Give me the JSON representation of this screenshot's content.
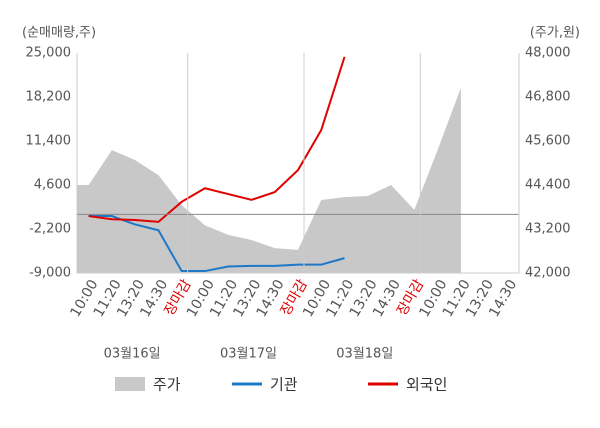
{
  "chart_data": {
    "type": "line",
    "y_axis_label": "(순매매량,주)",
    "y2_axis_label": "(주가,원)",
    "categories": [
      "10:00",
      "11:20",
      "13:20",
      "14:30",
      "장마감",
      "10:00",
      "11:20",
      "13:20",
      "14:30",
      "장마감",
      "10:00",
      "11:20",
      "13:20",
      "14:30",
      "장마감",
      "10:00",
      "11:20",
      "13:20",
      "14:30"
    ],
    "date_labels": [
      "03월16일",
      "03월17일",
      "03월18일"
    ],
    "x_label_highlight": {
      "indices": [
        4,
        9,
        14
      ],
      "color": "#e00000"
    },
    "ylim": [
      -9000,
      25000
    ],
    "yticks": [
      {
        "value": 25000,
        "label": "25,000"
      },
      {
        "value": 18200,
        "label": "18,200"
      },
      {
        "value": 11400,
        "label": "11,400"
      },
      {
        "value": 4600,
        "label": "4,600"
      },
      {
        "value": -2200,
        "label": "-2,200"
      },
      {
        "value": -9000,
        "label": "-9,000"
      }
    ],
    "y2lim": [
      42000,
      48000
    ],
    "y2ticks": [
      {
        "value": 48000,
        "label": "48,000"
      },
      {
        "value": 46800,
        "label": "46,800"
      },
      {
        "value": 45600,
        "label": "45,600"
      },
      {
        "value": 44400,
        "label": "44,400"
      },
      {
        "value": 43200,
        "label": "43,200"
      },
      {
        "value": 42000,
        "label": "42,000"
      }
    ],
    "reference_line": {
      "axis": "y2",
      "value": 43600
    },
    "series": [
      {
        "name": "주가",
        "kind": "area",
        "axis": "y2",
        "color": "#c8c8c8",
        "values": [
          44400,
          45350,
          45080,
          44670,
          43850,
          43300,
          43040,
          42900,
          42680,
          42630,
          43990,
          44070,
          44100,
          44400,
          43720,
          45350,
          47050,
          null,
          null
        ]
      },
      {
        "name": "기관",
        "kind": "line",
        "color": "#1e78c8",
        "values": [
          -200,
          -200,
          -1500,
          -2400,
          -8700,
          -8700,
          -8000,
          -7900,
          -7900,
          -7700,
          -7700,
          -6700,
          null,
          null,
          null,
          null,
          null,
          null,
          null
        ]
      },
      {
        "name": "외국인",
        "kind": "line",
        "color": "#e00000",
        "values": [
          -200,
          -700,
          -800,
          -1100,
          2000,
          4100,
          3200,
          2300,
          3500,
          6900,
          13100,
          24400,
          null,
          null,
          null,
          null,
          null,
          null,
          null
        ]
      }
    ]
  }
}
